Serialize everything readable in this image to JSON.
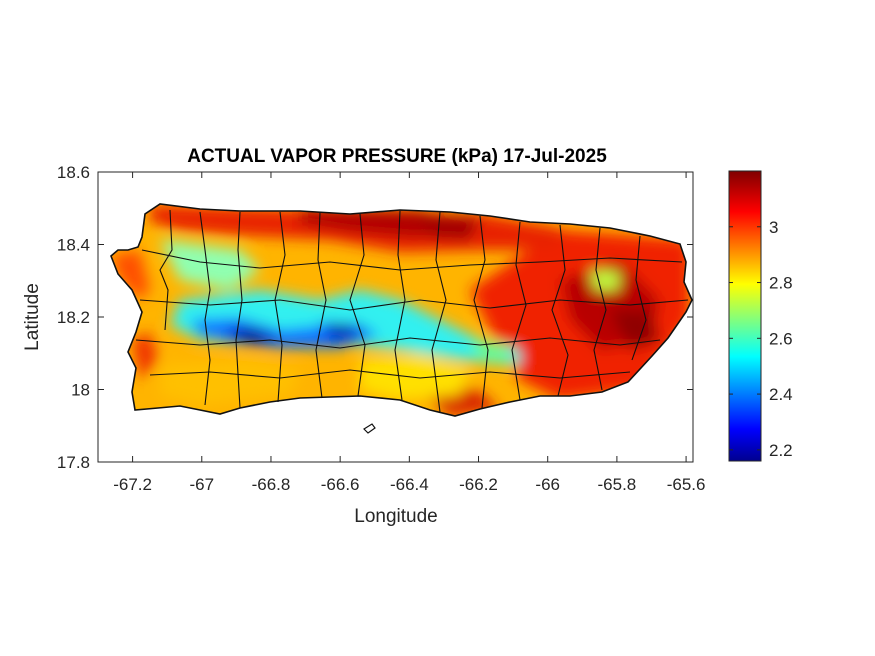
{
  "map": {
    "title": "ACTUAL VAPOR PRESSURE (kPa) 17-Jul-2025",
    "xlabel": "Longitude",
    "ylabel": "Latitude",
    "xlim": [
      -67.3,
      -65.58
    ],
    "ylim": [
      17.8,
      18.6
    ],
    "xticks": [
      -67.2,
      -67,
      -66.8,
      -66.6,
      -66.4,
      -66.2,
      -66,
      -65.8,
      -65.6
    ],
    "yticks": [
      17.8,
      18,
      18.2,
      18.4,
      18.6
    ],
    "colorbar": {
      "colormap": "jet",
      "range": [
        2.16,
        3.2
      ],
      "ticks": [
        2.2,
        2.4,
        2.6,
        2.8,
        3
      ]
    },
    "region": "Puerto Rico",
    "pattern": "high values (3.0-3.2 kPa) along the north coast and eastern third; lowest values (2.2-2.5 kPa) in the central mountain belt near -66.85 and -66.6 longitude; moderate values (2.7-2.9) in the southwest and south-central areas"
  }
}
